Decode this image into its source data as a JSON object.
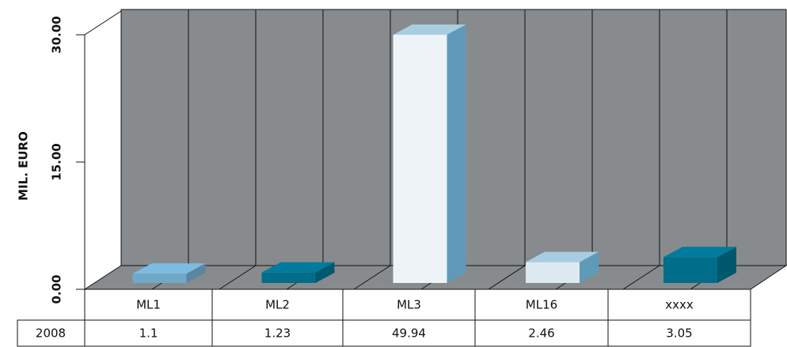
{
  "chart_data": {
    "type": "bar3d",
    "y_label": "MIL. EURO",
    "categories": [
      "ML1",
      "ML2",
      "ML3",
      "ML16",
      "xxxx"
    ],
    "series": [
      {
        "name": "2008",
        "values": [
          1.1,
          1.23,
          49.94,
          2.46,
          3.05
        ],
        "colors": [
          "#6fa8c8",
          "#006e8a",
          "#eef3f7",
          "#dde9f1",
          "#006e8a"
        ]
      }
    ],
    "ylim": [
      0,
      30
    ],
    "yticks": [
      {
        "value": 0,
        "label": "0.00"
      },
      {
        "value": 15,
        "label": "15.00"
      },
      {
        "value": 30,
        "label": "30.00"
      }
    ],
    "grid": true
  }
}
